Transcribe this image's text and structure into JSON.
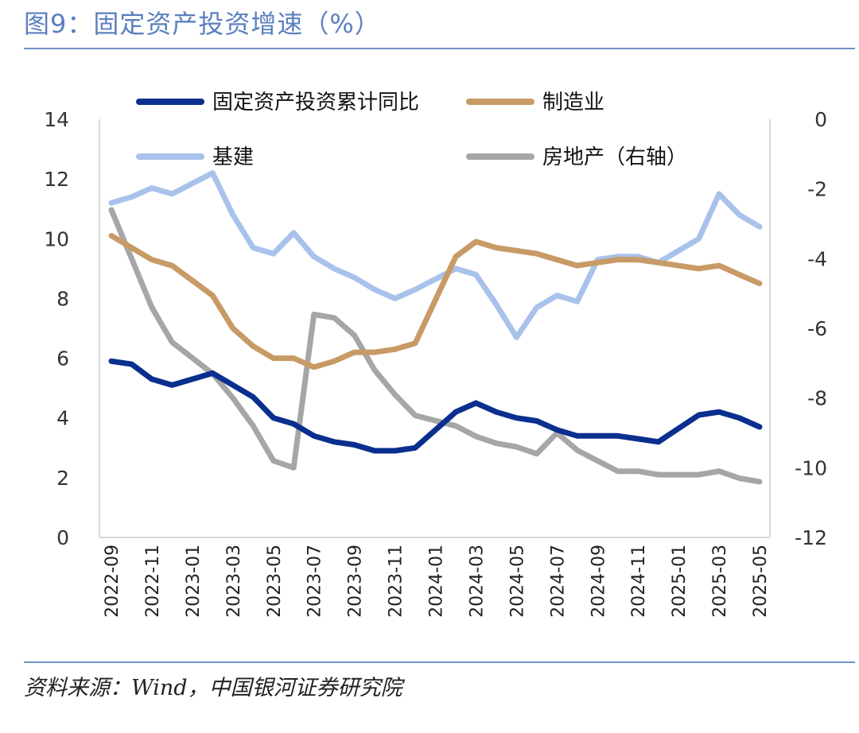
{
  "title": "图9：固定资产投资增速（%）",
  "source": "资料来源：Wind，中国银河证券研究院",
  "chart_data": {
    "type": "line",
    "grid": false,
    "legend_position": "top",
    "x": [
      "2022-09",
      "2022-10",
      "2022-11",
      "2022-12",
      "2023-01",
      "2023-02",
      "2023-03",
      "2023-04",
      "2023-05",
      "2023-06",
      "2023-07",
      "2023-08",
      "2023-09",
      "2023-10",
      "2023-11",
      "2023-12",
      "2024-01",
      "2024-02",
      "2024-03",
      "2024-04",
      "2024-05",
      "2024-06",
      "2024-07",
      "2024-08",
      "2024-09",
      "2024-10",
      "2024-11",
      "2024-12",
      "2025-01",
      "2025-02",
      "2025-03",
      "2025-04",
      "2025-05"
    ],
    "x_tick_labels": [
      "2022-09",
      "2022-11",
      "2023-01",
      "2023-03",
      "2023-05",
      "2023-07",
      "2023-09",
      "2023-11",
      "2024-01",
      "2024-03",
      "2024-05",
      "2024-07",
      "2024-09",
      "2024-11",
      "2025-01",
      "2025-03",
      "2025-05"
    ],
    "y_left": {
      "ylim": [
        0,
        14
      ],
      "ticks": [
        "0",
        "2",
        "4",
        "6",
        "8",
        "10",
        "12",
        "14"
      ]
    },
    "y_right": {
      "ylim": [
        -12,
        0
      ],
      "ticks": [
        "-12",
        "-10",
        "-8",
        "-6",
        "-4",
        "-2",
        "0"
      ]
    },
    "series": [
      {
        "name": "固定资产投资累计同比",
        "axis": "left",
        "color": "#0a2f8f",
        "values": [
          5.9,
          5.8,
          5.3,
          5.1,
          null,
          5.5,
          5.1,
          4.7,
          4.0,
          3.8,
          3.4,
          3.2,
          3.1,
          2.9,
          2.9,
          3.0,
          null,
          4.2,
          4.5,
          4.2,
          4.0,
          3.9,
          3.6,
          3.4,
          3.4,
          3.4,
          3.3,
          3.2,
          null,
          4.1,
          4.2,
          4.0,
          3.7
        ]
      },
      {
        "name": "制造业",
        "axis": "left",
        "color": "#c89a66",
        "values": [
          10.1,
          9.7,
          9.3,
          9.1,
          null,
          8.1,
          7.0,
          6.4,
          6.0,
          6.0,
          5.7,
          5.9,
          6.2,
          6.2,
          6.3,
          6.5,
          null,
          9.4,
          9.9,
          9.7,
          9.6,
          9.5,
          9.3,
          9.1,
          9.2,
          9.3,
          9.3,
          9.2,
          null,
          9.0,
          9.1,
          8.8,
          8.5
        ]
      },
      {
        "name": "基建",
        "axis": "left",
        "color": "#a8c2ec",
        "values": [
          11.2,
          11.4,
          11.7,
          11.5,
          null,
          12.2,
          10.8,
          9.7,
          9.5,
          10.2,
          9.4,
          9.0,
          8.7,
          8.3,
          8.0,
          8.3,
          null,
          9.0,
          8.8,
          7.8,
          6.7,
          7.7,
          8.1,
          7.9,
          9.3,
          9.4,
          9.4,
          9.2,
          null,
          10.0,
          11.5,
          10.8,
          10.4
        ]
      },
      {
        "name": "房地产（右轴）",
        "axis": "right",
        "color": "#a6a6a6",
        "values": [
          -2.6,
          -4.0,
          -5.4,
          -6.4,
          null,
          -7.3,
          -8.0,
          -8.8,
          -9.8,
          -10.0,
          -5.6,
          -5.7,
          -6.2,
          -7.2,
          -7.9,
          -8.5,
          null,
          -8.8,
          -9.1,
          -9.3,
          -9.4,
          -9.6,
          -9.0,
          -9.5,
          -9.8,
          -10.1,
          -10.1,
          -10.2,
          null,
          -10.2,
          -10.1,
          -10.3,
          -10.4
        ]
      }
    ]
  }
}
